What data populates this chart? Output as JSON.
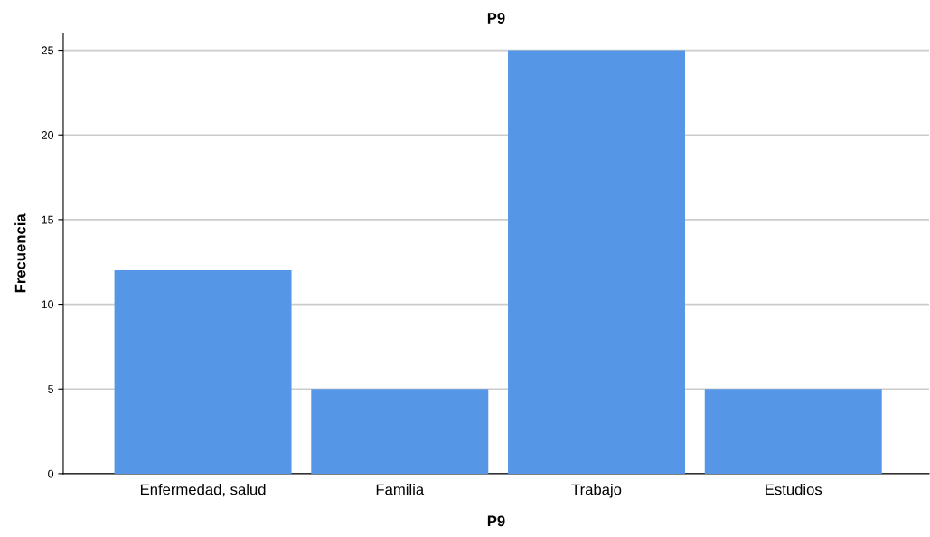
{
  "chart_data": {
    "type": "bar",
    "title": "P9",
    "xlabel": "P9",
    "ylabel": "Frecuencia",
    "categories": [
      "Enfermedad, salud",
      "Familia",
      "Trabajo",
      "Estudios"
    ],
    "values": [
      12,
      5,
      25,
      5
    ],
    "color": "#5596e6",
    "ylim": [
      0,
      26
    ],
    "yticks": [
      0,
      5,
      10,
      15,
      20,
      25
    ],
    "grid": "y"
  }
}
